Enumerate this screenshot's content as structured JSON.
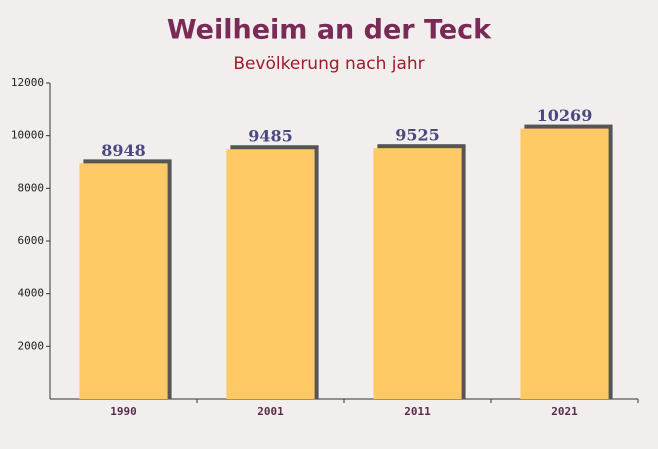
{
  "chart_data": {
    "type": "bar",
    "title": "Weilheim an der Teck",
    "subtitle": "Bevölkerung nach jahr",
    "categories": [
      "1990",
      "2001",
      "2011",
      "2021"
    ],
    "values": [
      8948,
      9485,
      9525,
      10269
    ],
    "color": "#ffc966",
    "ylim": [
      0,
      12000
    ],
    "yticks": [
      2000,
      4000,
      6000,
      8000,
      10000,
      12000
    ],
    "grid": false
  }
}
